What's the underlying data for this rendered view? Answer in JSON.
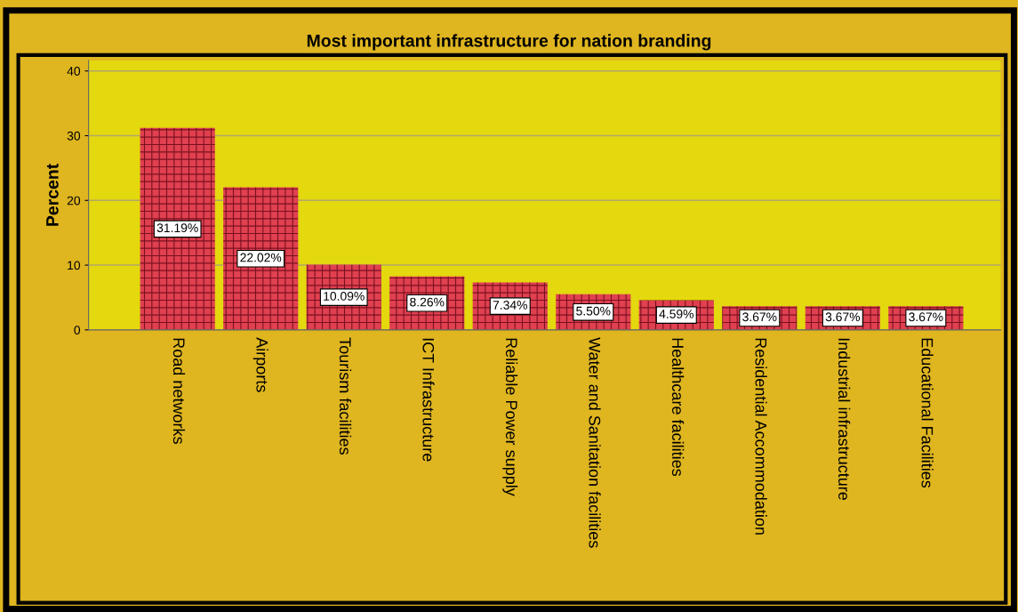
{
  "chart_data": {
    "type": "bar",
    "title": "Most important infrastructure for nation branding",
    "ylabel": "Percent",
    "categories": [
      "Road networks",
      "Airports",
      "Tourism facilities",
      "ICT Infrastructure",
      "Reliable Power supply",
      "Water and Sanitation facilities",
      "Healthcare facilities",
      "Residential Accommodation",
      "Industrial infrastructure",
      "Educational Facilities"
    ],
    "values": [
      31.19,
      22.02,
      10.09,
      8.26,
      7.34,
      5.5,
      4.59,
      3.67,
      3.67,
      3.67
    ],
    "value_labels": [
      "31.19%",
      "22.02%",
      "10.09%",
      "8.26%",
      "7.34%",
      "5.50%",
      "4.59%",
      "3.67%",
      "3.67%",
      "3.67%"
    ],
    "color": "#e0404f",
    "ylim": [
      0,
      41.6
    ],
    "yticks": [
      0,
      10,
      20,
      30,
      40
    ],
    "grid": "y",
    "legend": false
  }
}
